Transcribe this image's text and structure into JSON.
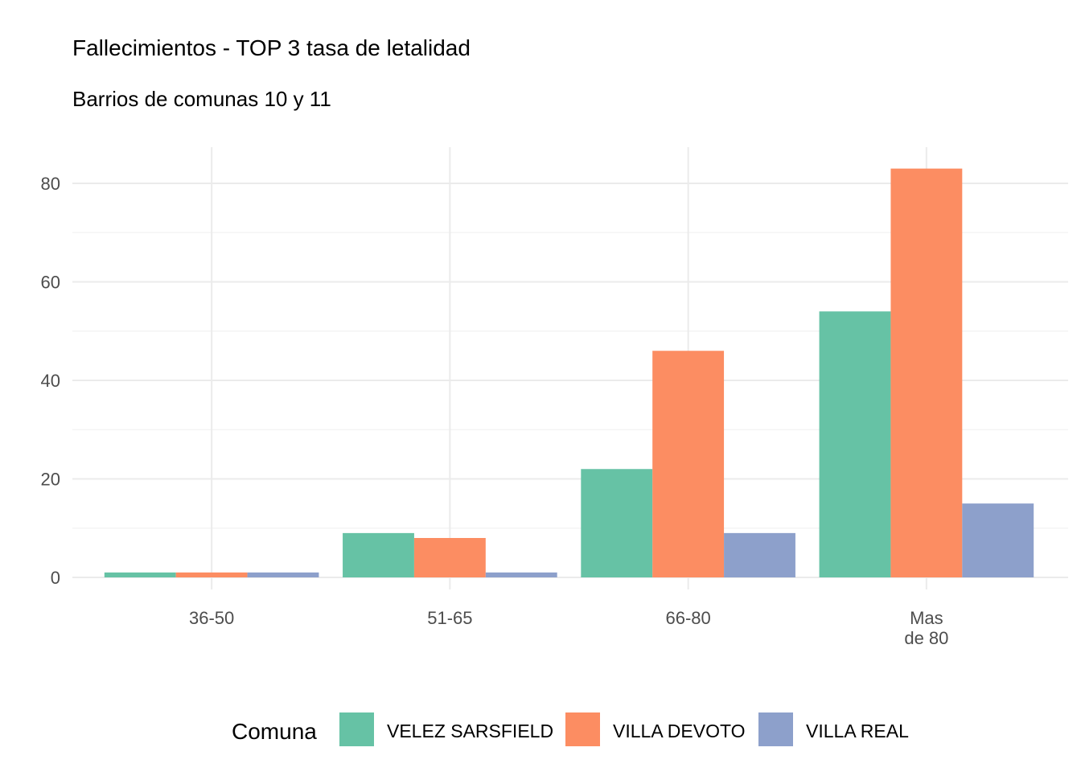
{
  "chart_data": {
    "type": "bar",
    "title": "Fallecimientos - TOP 3 tasa de letalidad",
    "subtitle": "Barrios de comunas 10 y 11",
    "xlabel": "",
    "ylabel": "",
    "categories": [
      [
        "36-50"
      ],
      [
        "51-65"
      ],
      [
        "66-80"
      ],
      [
        "Mas",
        "de 80"
      ]
    ],
    "series": [
      {
        "name": "VELEZ SARSFIELD",
        "color": "#66c2a5",
        "values": [
          1,
          9,
          22,
          54
        ]
      },
      {
        "name": "VILLA DEVOTO",
        "color": "#fc8d62",
        "values": [
          1,
          8,
          46,
          83
        ]
      },
      {
        "name": "VILLA REAL",
        "color": "#8da0cb",
        "values": [
          1,
          1,
          9,
          15
        ]
      }
    ],
    "ylim": [
      0,
      87
    ],
    "yticks": [
      0,
      20,
      40,
      60,
      80
    ],
    "grid": true,
    "legend": {
      "title": "Comuna",
      "position": "bottom"
    }
  }
}
